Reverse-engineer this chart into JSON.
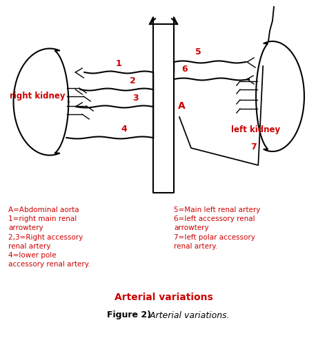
{
  "title": "Arterial variations",
  "figure_label": "Figure 2)",
  "figure_italic": " Arterial variations.",
  "left_legend": "A=Abdominal aorta\n1=right main renal\narrowtery\n2,3=Right accessory\nrenal artery\n4=lower pole\naccessory renal artery.",
  "right_legend": "5=Main left renal artery\n6=left accessory renal\narrowtery\n7=left polar accessory\nrenal artery.",
  "label_right_kidney": "right kidney",
  "label_left_kidney": "left kidney",
  "label_A": "A",
  "label_1": "1",
  "label_2": "2",
  "label_3": "3",
  "label_4": "4",
  "label_5": "5",
  "label_6": "6",
  "label_7": "7",
  "red_color": "#cc0000",
  "black_color": "#000000",
  "bg_color": "#ffffff"
}
